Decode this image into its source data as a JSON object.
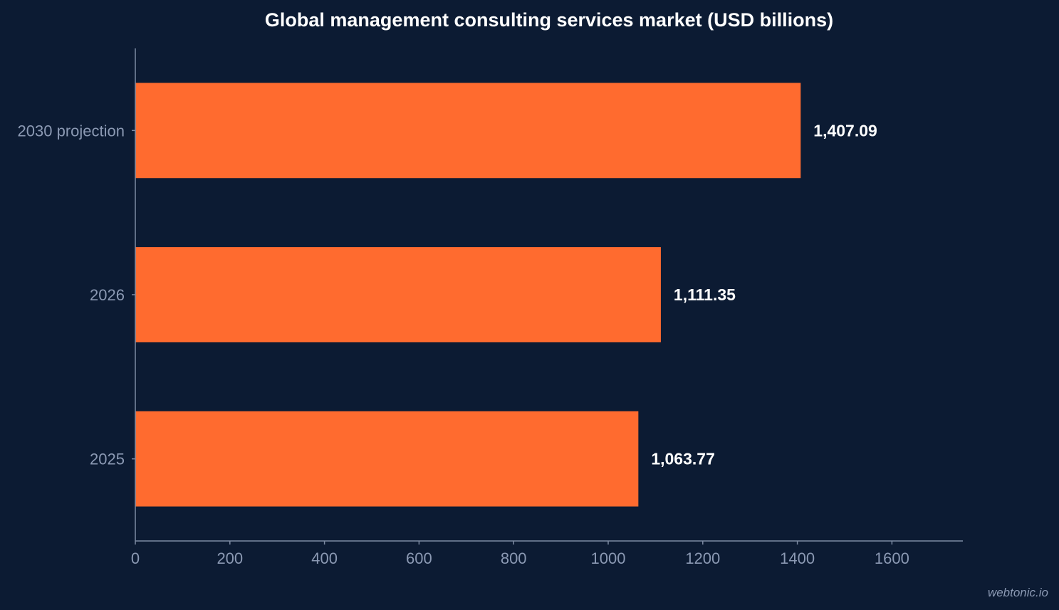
{
  "chart_data": {
    "type": "bar",
    "orientation": "horizontal",
    "title": "Global management consulting services market (USD billions)",
    "xlabel": "",
    "ylabel": "",
    "categories": [
      "2030 projection",
      "2026",
      "2025"
    ],
    "values": [
      1407.09,
      1111.35,
      1063.77
    ],
    "value_labels": [
      "1,407.09",
      "1,111.35",
      "1,063.77"
    ],
    "xlim": [
      0,
      1750
    ],
    "xticks": [
      0,
      200,
      400,
      600,
      800,
      1000,
      1200,
      1400,
      1600
    ],
    "grid": false,
    "legend": "none",
    "colors": {
      "background": "#0c1b33",
      "bar": "#ff6b2f",
      "axis": "#7d8ba3",
      "tick_text": "#8b99b3",
      "label_text": "#ffffff"
    }
  },
  "watermark": "webtonic.io"
}
